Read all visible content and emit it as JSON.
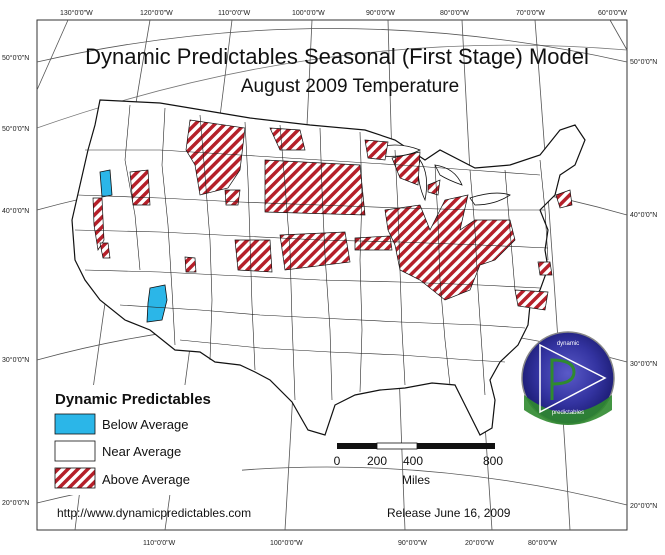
{
  "title": "Dynamic Predictables Seasonal (First Stage) Model",
  "subtitle": "August 2009 Temperature",
  "graticule": {
    "top_longitudes": [
      "130°0'0\"W",
      "120°0'0\"W",
      "110°0'0\"W",
      "100°0'0\"W",
      "90°0'0\"W",
      "80°0'0\"W",
      "70°0'0\"W",
      "60°0'0\"W"
    ],
    "bottom_longitudes": [
      "110°0'0\"W",
      "100°0'0\"W",
      "90°0'0\"W",
      "20°0'0\"W",
      "80°0'0\"W"
    ],
    "left_latitudes": [
      "50°0'0\"N",
      "50°0'0\"N",
      "40°0'0\"N",
      "30°0'0\"N",
      "20°0'0\"N"
    ],
    "right_latitudes": [
      "50°0'0\"N",
      "40°0'0\"N",
      "30°0'0\"N",
      "20°0'0\"N"
    ]
  },
  "legend": {
    "title": "Dynamic Predictables",
    "items": [
      {
        "label": "Below Average",
        "swatch": "below"
      },
      {
        "label": "Near Average",
        "swatch": "near"
      },
      {
        "label": "Above Average",
        "swatch": "above"
      }
    ]
  },
  "scale": {
    "ticks": [
      "0",
      "200",
      "400",
      "800"
    ],
    "unit": "Miles"
  },
  "footer": {
    "url": "http://www.dynamicpredictables.com",
    "release": "Release June 16, 2009"
  },
  "logo": {
    "top_text": "dynamic",
    "bottom_text": "predictables"
  },
  "colors": {
    "below": "#2bb6e8",
    "above_stripe": "#b5202a",
    "boundary": "#222222",
    "graticule": "#555555",
    "logo_fill": "#3a3aa0",
    "logo_ground": "#3a8a3a"
  }
}
